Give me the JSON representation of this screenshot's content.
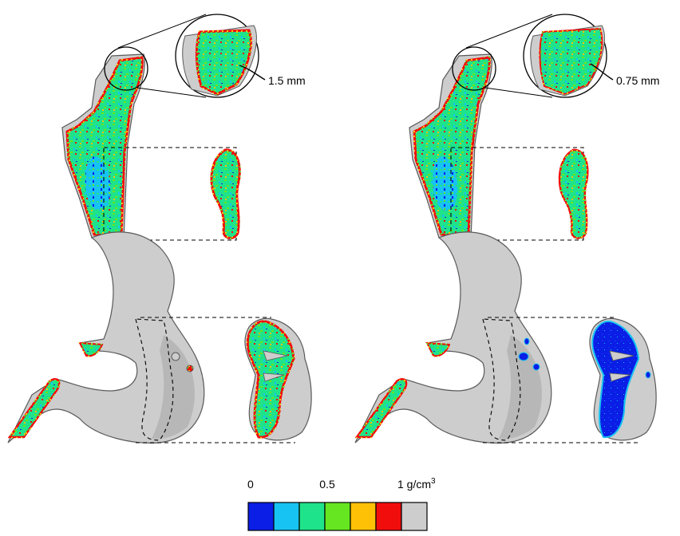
{
  "panels": [
    {
      "id": "left",
      "zoom_label": "1.5 mm"
    },
    {
      "id": "right",
      "zoom_label": "0.75 mm"
    }
  ],
  "colorbar": {
    "tick_labels": [
      "0",
      "0.5",
      "1 g/cm"
    ],
    "unit_superscript": "3",
    "colors": [
      "#0a1ee6",
      "#17c3f2",
      "#1fe38a",
      "#66e621",
      "#ffc106",
      "#f20d0d",
      "#cdcdcd"
    ]
  },
  "colors": {
    "bone_gray": "#cdcdcd",
    "outline": "#5a5a5a",
    "dense_blue": "#0a1ee6"
  }
}
